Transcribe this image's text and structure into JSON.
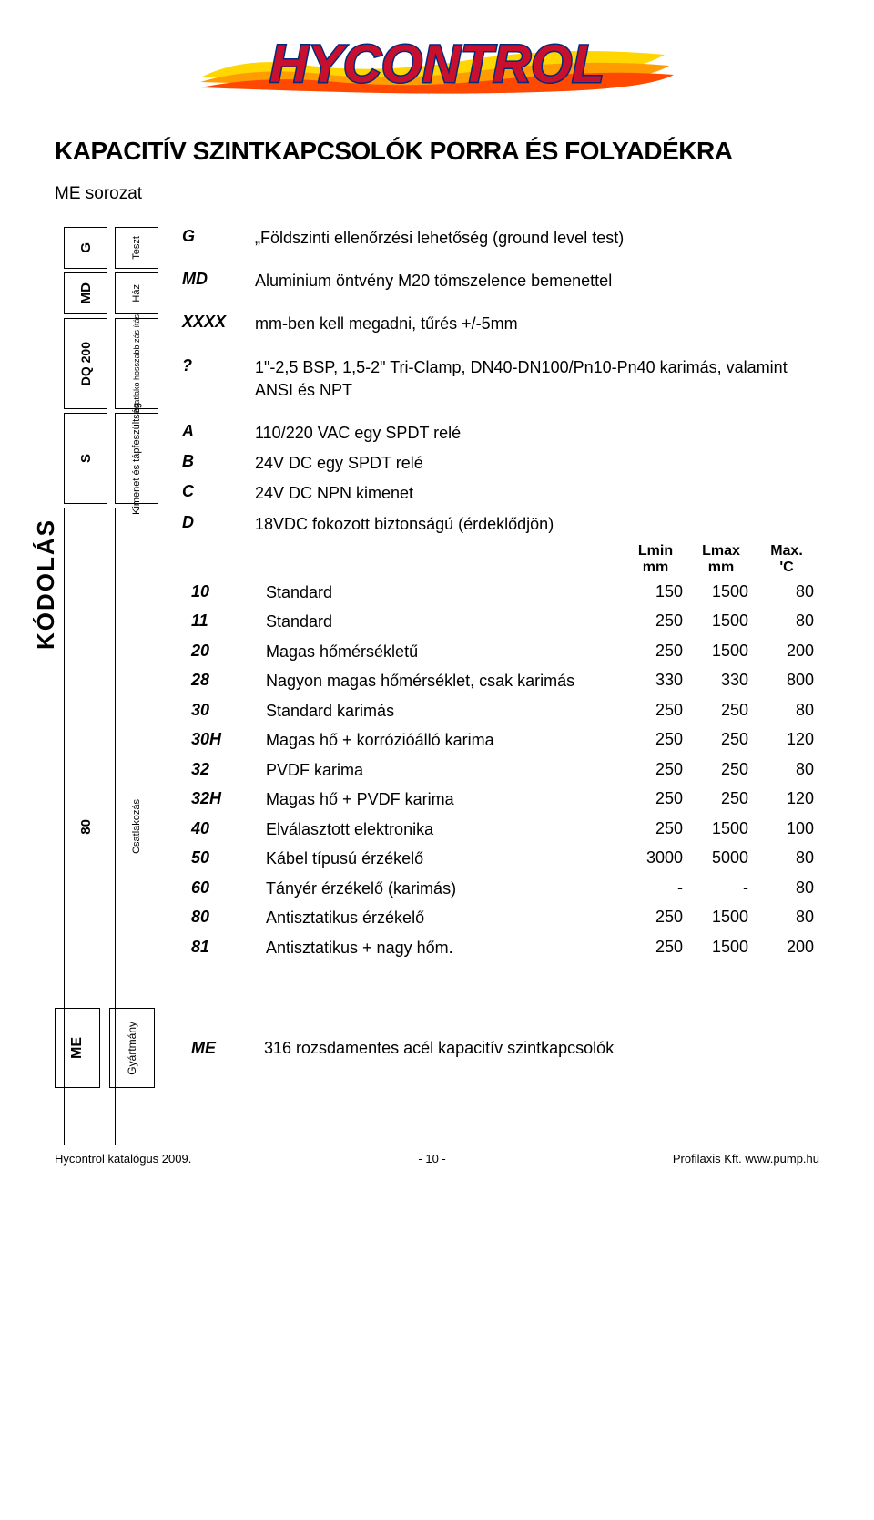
{
  "title": "KAPACITÍV SZINTKAPCSOLÓK PORRA ÉS FOLYADÉKRA",
  "subtitle": "ME sorozat",
  "logo_text": "HYCONTROL",
  "logo_colors": {
    "flame1": "#ffd600",
    "flame2": "#ff6b00",
    "text_fill": "#c8102e",
    "text_outline": "#002b7f"
  },
  "kodolas_label": "KÓDOLÁS",
  "ladder_left": [
    {
      "key": "G",
      "side": "Teszt"
    },
    {
      "key": "MD",
      "side": "Ház"
    },
    {
      "key": "DQ 200",
      "side": "csatlako hosszabb\nzás        ítás"
    },
    {
      "key": "S",
      "side": "Kimenet és\ntápfeszültség"
    },
    {
      "key": "80",
      "side": "Csatlakozás"
    }
  ],
  "defs": [
    {
      "code": "G",
      "text": "„Földszinti ellenőrzési lehetőség (ground level test)"
    },
    {
      "code": "MD",
      "text": "Aluminium öntvény M20 tömszelence bemenettel"
    },
    {
      "code": "XXXX",
      "text": "mm-ben kell megadni, tűrés +/-5mm"
    },
    {
      "code": "?",
      "text": "1\"-2,5 BSP, 1,5-2\" Tri-Clamp, DN40-DN100/Pn10-Pn40 karimás, valamint ANSI és NPT"
    }
  ],
  "abcd": [
    {
      "code": "A",
      "text": "110/220 VAC egy SPDT relé"
    },
    {
      "code": "B",
      "text": "24V DC egy SPDT relé"
    },
    {
      "code": "C",
      "text": "24V DC NPN kimenet"
    },
    {
      "code": "D",
      "text": "18VDC fokozott biztonságú (érdeklődjön)"
    }
  ],
  "probe_header": {
    "lmin": "Lmin\nmm",
    "lmax": "Lmax\nmm",
    "max": "Max.\n'C"
  },
  "probes": [
    {
      "code": "10",
      "desc": "Standard",
      "lmin": "150",
      "lmax": "1500",
      "max": "80"
    },
    {
      "code": "11",
      "desc": "Standard",
      "lmin": "250",
      "lmax": "1500",
      "max": "80"
    },
    {
      "code": "20",
      "desc": "Magas hőmérsékletű",
      "lmin": "250",
      "lmax": "1500",
      "max": "200"
    },
    {
      "code": "28",
      "desc": "Nagyon magas hőmérséklet, csak karimás",
      "lmin": "330",
      "lmax": "330",
      "max": "800"
    },
    {
      "code": "30",
      "desc": "Standard karimás",
      "lmin": "250",
      "lmax": "250",
      "max": "80"
    },
    {
      "code": "30H",
      "desc": "Magas hő + korrózióálló karima",
      "lmin": "250",
      "lmax": "250",
      "max": "120"
    },
    {
      "code": "32",
      "desc": "PVDF karima",
      "lmin": "250",
      "lmax": "250",
      "max": "80"
    },
    {
      "code": "32H",
      "desc": "Magas hő + PVDF karima",
      "lmin": "250",
      "lmax": "250",
      "max": "120"
    },
    {
      "code": "40",
      "desc": "Elválasztott elektronika",
      "lmin": "250",
      "lmax": "1500",
      "max": "100"
    },
    {
      "code": "50",
      "desc": "Kábel típusú érzékelő",
      "lmin": "3000",
      "lmax": "5000",
      "max": "80"
    },
    {
      "code": "60",
      "desc": "Tányér érzékelő (karimás)",
      "lmin": "-",
      "lmax": "-",
      "max": "80"
    },
    {
      "code": "80",
      "desc": "Antisztatikus érzékelő",
      "lmin": "250",
      "lmax": "1500",
      "max": "80"
    },
    {
      "code": "81",
      "desc": "Antisztatikus + nagy hőm.",
      "lmin": "250",
      "lmax": "1500",
      "max": "200"
    }
  ],
  "footer_box": {
    "key": "ME",
    "side": "Gyártmány"
  },
  "footer_def": {
    "code": "ME",
    "text": "316 rozsdamentes acél kapacitív szintkapcsolók"
  },
  "page_footer": {
    "left": "Hycontrol katalógus 2009.",
    "center": "- 10 -",
    "right": "Profilaxis Kft. www.pump.hu"
  }
}
